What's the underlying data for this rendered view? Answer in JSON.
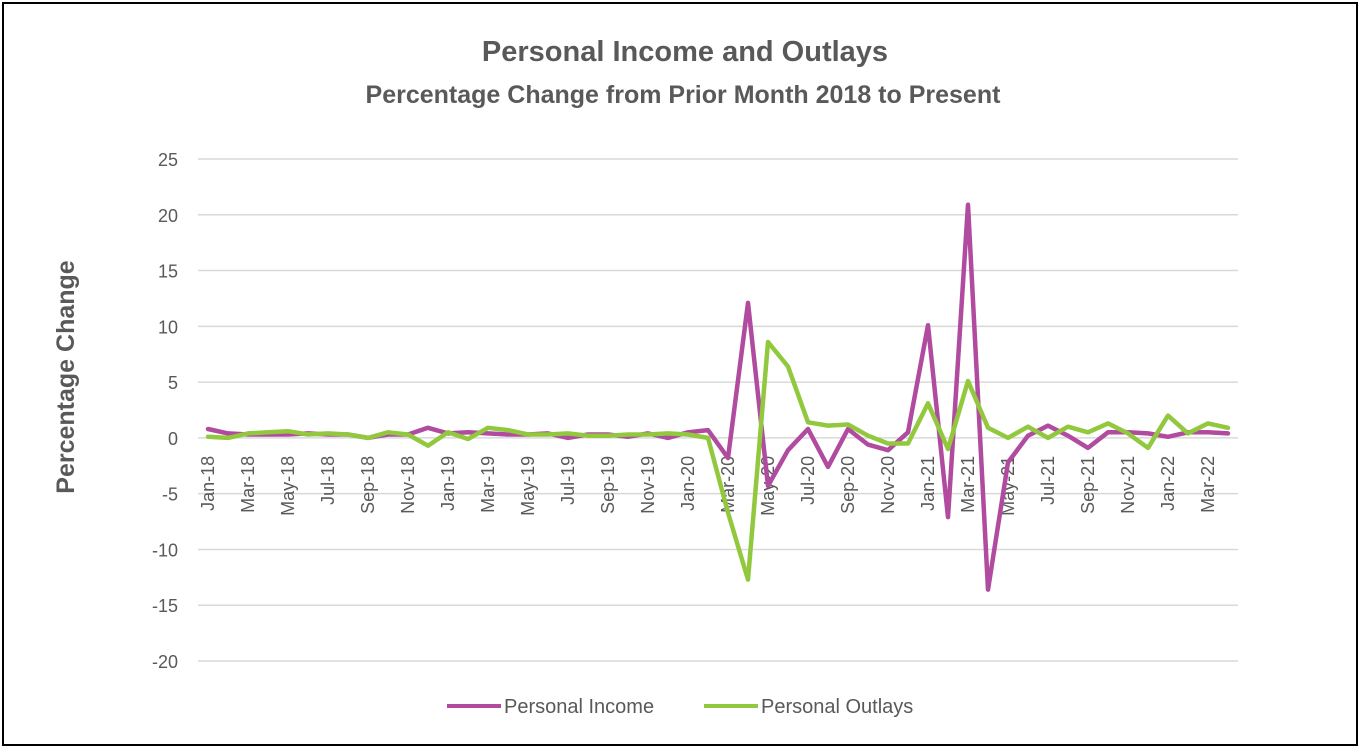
{
  "chart_data": {
    "type": "line",
    "title": "Personal Income and Outlays",
    "subtitle": "Percentage Change from Prior Month 2018 to Present",
    "xlabel": "",
    "ylabel": "Percentage Change",
    "ylim": [
      -20,
      25
    ],
    "ytick_step": 5,
    "grid": true,
    "legend_position": "bottom",
    "categories": [
      "Jan-18",
      "Feb-18",
      "Mar-18",
      "Apr-18",
      "May-18",
      "Jun-18",
      "Jul-18",
      "Aug-18",
      "Sep-18",
      "Oct-18",
      "Nov-18",
      "Dec-18",
      "Jan-19",
      "Feb-19",
      "Mar-19",
      "Apr-19",
      "May-19",
      "Jun-19",
      "Jul-19",
      "Aug-19",
      "Sep-19",
      "Oct-19",
      "Nov-19",
      "Dec-19",
      "Jan-20",
      "Feb-20",
      "Mar-20",
      "Apr-20",
      "May-20",
      "Jun-20",
      "Jul-20",
      "Aug-20",
      "Sep-20",
      "Oct-20",
      "Nov-20",
      "Dec-20",
      "Jan-21",
      "Feb-21",
      "Mar-21",
      "Apr-21",
      "May-21",
      "Jun-21",
      "Jul-21",
      "Aug-21",
      "Sep-21",
      "Oct-21",
      "Nov-21",
      "Dec-21",
      "Jan-22",
      "Feb-22",
      "Mar-22",
      "Apr-22"
    ],
    "tick_labels_shown": [
      "Jan-18",
      "Mar-18",
      "May-18",
      "Jul-18",
      "Sep-18",
      "Nov-18",
      "Jan-19",
      "Mar-19",
      "May-19",
      "Jul-19",
      "Sep-19",
      "Nov-19",
      "Jan-20",
      "Mar-20",
      "May-20",
      "Jul-20",
      "Sep-20",
      "Nov-20",
      "Jan-21",
      "Mar-21",
      "May-21",
      "Jul-21",
      "Sep-21",
      "Nov-21",
      "Jan-22",
      "Mar-22"
    ],
    "series": [
      {
        "name": "Personal Income",
        "color": "#B04B9F",
        "values": [
          0.8,
          0.4,
          0.3,
          0.3,
          0.3,
          0.4,
          0.3,
          0.3,
          0.0,
          0.3,
          0.3,
          0.9,
          0.4,
          0.5,
          0.4,
          0.3,
          0.3,
          0.4,
          0.0,
          0.3,
          0.3,
          0.1,
          0.4,
          0.0,
          0.5,
          0.7,
          -1.8,
          12.1,
          -4.3,
          -1.1,
          0.8,
          -2.6,
          0.8,
          -0.6,
          -1.1,
          0.5,
          10.1,
          -7.1,
          20.9,
          -13.6,
          -2.2,
          0.2,
          1.1,
          0.2,
          -0.9,
          0.5,
          0.5,
          0.4,
          0.1,
          0.5,
          0.5,
          0.4
        ]
      },
      {
        "name": "Personal Outlays",
        "color": "#92C83E",
        "values": [
          0.1,
          0.0,
          0.4,
          0.5,
          0.6,
          0.3,
          0.4,
          0.3,
          0.0,
          0.5,
          0.3,
          -0.7,
          0.5,
          -0.1,
          0.9,
          0.7,
          0.3,
          0.3,
          0.4,
          0.2,
          0.2,
          0.3,
          0.3,
          0.4,
          0.3,
          0.0,
          -6.7,
          -12.7,
          8.6,
          6.4,
          1.4,
          1.1,
          1.2,
          0.2,
          -0.5,
          -0.5,
          3.1,
          -1.0,
          5.1,
          0.9,
          0.0,
          1.0,
          0.0,
          1.0,
          0.5,
          1.3,
          0.4,
          -0.9,
          2.0,
          0.4,
          1.3,
          0.9
        ]
      }
    ]
  }
}
